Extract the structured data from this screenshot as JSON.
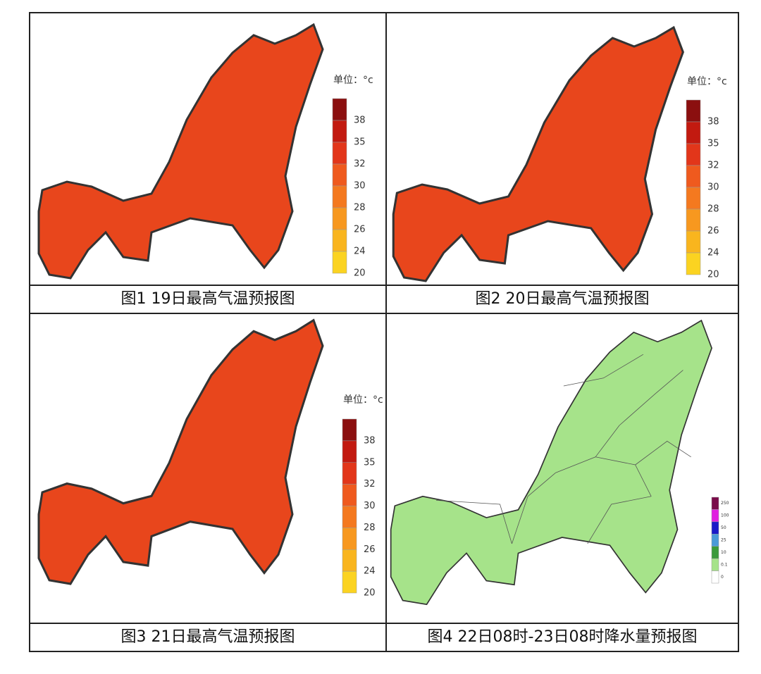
{
  "panels": [
    {
      "caption": "图1  19日最高气温预报图",
      "unit": "单位：°c",
      "legend": [
        "38",
        "35",
        "32",
        "30",
        "28",
        "26",
        "24",
        "20"
      ]
    },
    {
      "caption": "图2  20日最高气温预报图",
      "unit": "单位：°c",
      "legend": [
        "38",
        "35",
        "32",
        "30",
        "28",
        "26",
        "24",
        "20"
      ]
    },
    {
      "caption": "图3  21日最高气温预报图",
      "unit": "单位：°c",
      "legend": [
        "38",
        "35",
        "32",
        "30",
        "28",
        "26",
        "24",
        "20"
      ]
    },
    {
      "caption": "图4  22日08时-23日08时降水量预报图",
      "legend": [
        "250",
        "100",
        "50",
        "25",
        "10",
        "0.1",
        "0"
      ]
    }
  ]
}
